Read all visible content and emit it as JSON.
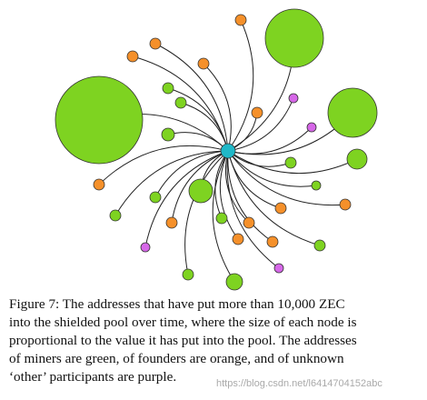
{
  "figure": {
    "caption": [
      "Figure 7: The addresses that have put more than 10,000 ZEC",
      "into the shielded pool over time, where the size of each node is",
      "proportional to the value it has put into the pool. The addresses",
      "of miners are green, of founders are orange, and of unknown",
      "‘other’ participants are purple."
    ],
    "watermark": "https://blog.csdn.net/l6414704152abc"
  }
}
